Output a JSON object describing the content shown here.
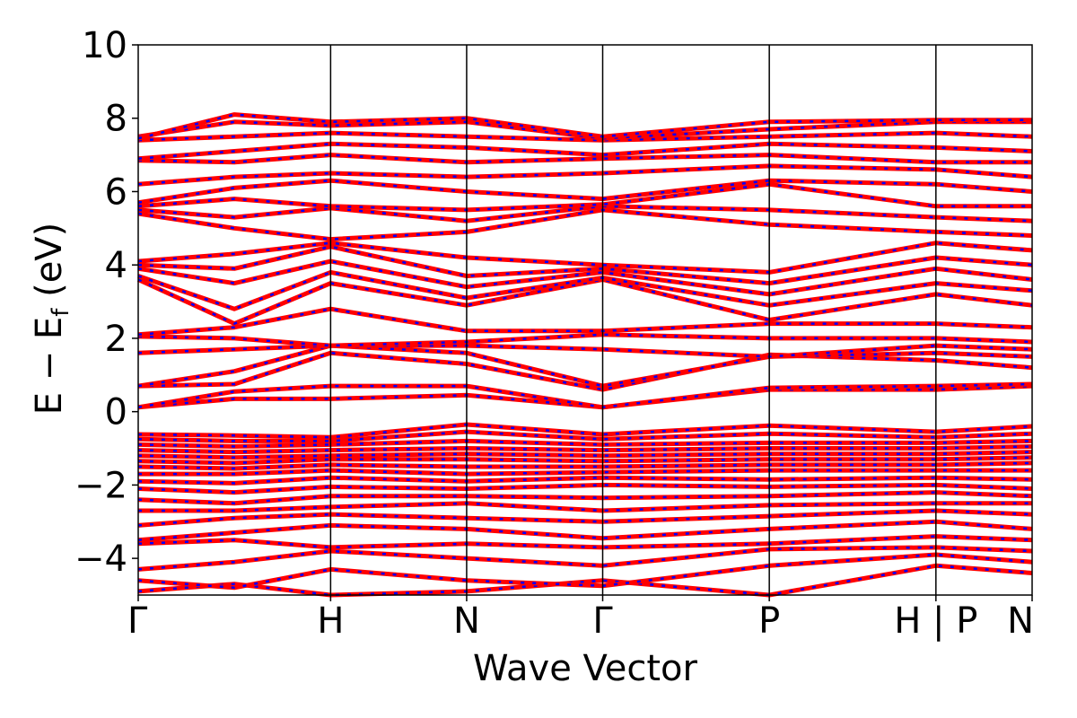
{
  "chart_data": {
    "type": "line",
    "title": "",
    "xlabel": "Wave Vector",
    "ylabel_main": "E − E",
    "ylabel_sub": "f",
    "ylabel_unit": " (eV)",
    "ylim": [
      -5,
      10
    ],
    "yticks": [
      10,
      8,
      6,
      4,
      2,
      0,
      -2,
      -4
    ],
    "ytick_labels": [
      "10",
      "8",
      "6",
      "4",
      "2",
      "0",
      "−2",
      "−4"
    ],
    "kpath": [
      {
        "label": "Γ",
        "x": 0.0
      },
      {
        "label": "H",
        "x": 1.0
      },
      {
        "label": "N",
        "x": 1.707
      },
      {
        "label": "Γ",
        "x": 2.414
      },
      {
        "label": "P",
        "x": 3.28
      },
      {
        "label": "H | P",
        "x": 4.146
      },
      {
        "label": "N",
        "x": 4.646
      }
    ],
    "grid": false,
    "legend": "none",
    "series_colors": {
      "spin_up": "#ff0000",
      "spin_down": "#0000ff"
    },
    "bands": [
      [
        [
          0,
          -4.9
        ],
        [
          0.5,
          -4.7
        ],
        [
          1.0,
          -5.0
        ],
        [
          1.707,
          -4.9
        ],
        [
          2.414,
          -4.6
        ],
        [
          3.28,
          -5.0
        ],
        [
          4.146,
          -4.2
        ],
        [
          4.646,
          -4.4
        ]
      ],
      [
        [
          0,
          -4.6
        ],
        [
          0.5,
          -4.8
        ],
        [
          1.0,
          -4.3
        ],
        [
          1.707,
          -4.6
        ],
        [
          2.414,
          -4.75
        ],
        [
          3.28,
          -4.2
        ],
        [
          4.146,
          -3.9
        ],
        [
          4.646,
          -4.1
        ]
      ],
      [
        [
          0,
          -4.3
        ],
        [
          0.5,
          -4.1
        ],
        [
          1.0,
          -3.8
        ],
        [
          1.707,
          -4.0
        ],
        [
          2.414,
          -4.2
        ],
        [
          3.28,
          -3.75
        ],
        [
          4.146,
          -3.7
        ],
        [
          4.646,
          -3.8
        ]
      ],
      [
        [
          0,
          -3.6
        ],
        [
          0.5,
          -3.5
        ],
        [
          1.0,
          -3.7
        ],
        [
          1.707,
          -3.6
        ],
        [
          2.414,
          -3.7
        ],
        [
          3.28,
          -3.6
        ],
        [
          4.146,
          -3.4
        ],
        [
          4.646,
          -3.5
        ]
      ],
      [
        [
          0,
          -3.5
        ],
        [
          0.5,
          -3.3
        ],
        [
          1.0,
          -3.1
        ],
        [
          1.707,
          -3.2
        ],
        [
          2.414,
          -3.45
        ],
        [
          3.28,
          -3.2
        ],
        [
          4.146,
          -3.0
        ],
        [
          4.646,
          -3.2
        ]
      ],
      [
        [
          0,
          -3.1
        ],
        [
          0.5,
          -2.9
        ],
        [
          1.0,
          -2.8
        ],
        [
          1.707,
          -2.9
        ],
        [
          2.414,
          -3.0
        ],
        [
          3.28,
          -2.85
        ],
        [
          4.146,
          -2.7
        ],
        [
          4.646,
          -2.8
        ]
      ],
      [
        [
          0,
          -2.7
        ],
        [
          0.5,
          -2.7
        ],
        [
          1.0,
          -2.6
        ],
        [
          1.707,
          -2.5
        ],
        [
          2.414,
          -2.7
        ],
        [
          3.28,
          -2.55
        ],
        [
          4.146,
          -2.5
        ],
        [
          4.646,
          -2.5
        ]
      ],
      [
        [
          0,
          -2.4
        ],
        [
          0.5,
          -2.5
        ],
        [
          1.0,
          -2.3
        ],
        [
          1.707,
          -2.3
        ],
        [
          2.414,
          -2.35
        ],
        [
          3.28,
          -2.3
        ],
        [
          4.146,
          -2.2
        ],
        [
          4.646,
          -2.3
        ]
      ],
      [
        [
          0,
          -2.1
        ],
        [
          0.5,
          -2.2
        ],
        [
          1.0,
          -2.05
        ],
        [
          1.707,
          -2.1
        ],
        [
          2.414,
          -2.0
        ],
        [
          3.28,
          -2.05
        ],
        [
          4.146,
          -2.0
        ],
        [
          4.646,
          -2.1
        ]
      ],
      [
        [
          0,
          -1.9
        ],
        [
          0.5,
          -1.95
        ],
        [
          1.0,
          -1.8
        ],
        [
          1.707,
          -1.9
        ],
        [
          2.414,
          -1.8
        ],
        [
          3.28,
          -1.85
        ],
        [
          4.146,
          -1.8
        ],
        [
          4.646,
          -1.85
        ]
      ],
      [
        [
          0,
          -1.7
        ],
        [
          0.5,
          -1.7
        ],
        [
          1.0,
          -1.6
        ],
        [
          1.707,
          -1.7
        ],
        [
          2.414,
          -1.65
        ],
        [
          3.28,
          -1.6
        ],
        [
          4.146,
          -1.6
        ],
        [
          4.646,
          -1.6
        ]
      ],
      [
        [
          0,
          -1.5
        ],
        [
          0.5,
          -1.55
        ],
        [
          1.0,
          -1.45
        ],
        [
          1.707,
          -1.5
        ],
        [
          2.414,
          -1.5
        ],
        [
          3.28,
          -1.45
        ],
        [
          4.146,
          -1.45
        ],
        [
          4.646,
          -1.4
        ]
      ],
      [
        [
          0,
          -1.35
        ],
        [
          0.5,
          -1.4
        ],
        [
          1.0,
          -1.3
        ],
        [
          1.707,
          -1.3
        ],
        [
          2.414,
          -1.35
        ],
        [
          3.28,
          -1.3
        ],
        [
          4.146,
          -1.3
        ],
        [
          4.646,
          -1.25
        ]
      ],
      [
        [
          0,
          -1.2
        ],
        [
          0.5,
          -1.25
        ],
        [
          1.0,
          -1.2
        ],
        [
          1.707,
          -1.15
        ],
        [
          2.414,
          -1.2
        ],
        [
          3.28,
          -1.15
        ],
        [
          4.146,
          -1.15
        ],
        [
          4.646,
          -1.1
        ]
      ],
      [
        [
          0,
          -1.05
        ],
        [
          0.5,
          -1.1
        ],
        [
          1.0,
          -1.05
        ],
        [
          1.707,
          -1.0
        ],
        [
          2.414,
          -1.05
        ],
        [
          3.28,
          -1.0
        ],
        [
          4.146,
          -1.0
        ],
        [
          4.646,
          -0.95
        ]
      ],
      [
        [
          0,
          -0.9
        ],
        [
          0.5,
          -0.95
        ],
        [
          1.0,
          -0.9
        ],
        [
          1.707,
          -0.8
        ],
        [
          2.414,
          -0.9
        ],
        [
          3.28,
          -0.85
        ],
        [
          4.146,
          -0.85
        ],
        [
          4.646,
          -0.8
        ]
      ],
      [
        [
          0,
          -0.75
        ],
        [
          0.5,
          -0.8
        ],
        [
          1.0,
          -0.8
        ],
        [
          1.707,
          -0.55
        ],
        [
          2.414,
          -0.75
        ],
        [
          3.28,
          -0.6
        ],
        [
          4.146,
          -0.7
        ],
        [
          4.646,
          -0.6
        ]
      ],
      [
        [
          0,
          -0.62
        ],
        [
          0.5,
          -0.65
        ],
        [
          1.0,
          -0.7
        ],
        [
          1.707,
          -0.35
        ],
        [
          2.414,
          -0.62
        ],
        [
          3.28,
          -0.38
        ],
        [
          4.146,
          -0.55
        ],
        [
          4.646,
          -0.4
        ]
      ],
      [
        [
          0,
          0.12
        ],
        [
          0.5,
          0.35
        ],
        [
          1.0,
          0.35
        ],
        [
          1.707,
          0.45
        ],
        [
          2.414,
          0.12
        ],
        [
          3.28,
          0.6
        ],
        [
          4.146,
          0.6
        ],
        [
          4.646,
          0.7
        ]
      ],
      [
        [
          0,
          0.12
        ],
        [
          0.5,
          0.55
        ],
        [
          1.0,
          0.7
        ],
        [
          1.707,
          0.7
        ],
        [
          2.414,
          0.12
        ],
        [
          3.28,
          0.65
        ],
        [
          4.146,
          0.7
        ],
        [
          4.646,
          0.75
        ]
      ],
      [
        [
          0,
          0.7
        ],
        [
          0.5,
          0.75
        ],
        [
          1.0,
          1.6
        ],
        [
          1.707,
          1.3
        ],
        [
          2.414,
          0.6
        ],
        [
          3.28,
          1.55
        ],
        [
          4.146,
          1.4
        ],
        [
          4.646,
          1.2
        ]
      ],
      [
        [
          0,
          0.7
        ],
        [
          0.5,
          1.1
        ],
        [
          1.0,
          1.8
        ],
        [
          1.707,
          1.6
        ],
        [
          2.414,
          0.7
        ],
        [
          3.28,
          1.5
        ],
        [
          4.146,
          1.6
        ],
        [
          4.646,
          1.5
        ]
      ],
      [
        [
          0,
          1.6
        ],
        [
          0.5,
          1.7
        ],
        [
          1.0,
          1.8
        ],
        [
          1.707,
          1.8
        ],
        [
          2.414,
          1.7
        ],
        [
          3.28,
          1.5
        ],
        [
          4.146,
          1.8
        ],
        [
          4.646,
          1.7
        ]
      ],
      [
        [
          0,
          2.05
        ],
        [
          0.5,
          2.0
        ],
        [
          1.0,
          1.8
        ],
        [
          1.707,
          1.9
        ],
        [
          2.414,
          2.1
        ],
        [
          3.28,
          2.0
        ],
        [
          4.146,
          2.0
        ],
        [
          4.646,
          1.9
        ]
      ],
      [
        [
          0,
          2.1
        ],
        [
          0.5,
          2.3
        ],
        [
          1.0,
          2.8
        ],
        [
          1.707,
          2.2
        ],
        [
          2.414,
          2.2
        ],
        [
          3.28,
          2.4
        ],
        [
          4.146,
          2.4
        ],
        [
          4.646,
          2.3
        ]
      ],
      [
        [
          0,
          3.6
        ],
        [
          0.5,
          2.4
        ],
        [
          1.0,
          3.5
        ],
        [
          1.707,
          2.9
        ],
        [
          2.414,
          3.6
        ],
        [
          3.28,
          2.5
        ],
        [
          4.146,
          3.2
        ],
        [
          4.646,
          2.9
        ]
      ],
      [
        [
          0,
          3.7
        ],
        [
          0.5,
          2.8
        ],
        [
          1.0,
          3.8
        ],
        [
          1.707,
          3.1
        ],
        [
          2.414,
          3.65
        ],
        [
          3.28,
          2.9
        ],
        [
          4.146,
          3.5
        ],
        [
          4.646,
          3.3
        ]
      ],
      [
        [
          0,
          3.9
        ],
        [
          0.5,
          3.5
        ],
        [
          1.0,
          4.1
        ],
        [
          1.707,
          3.4
        ],
        [
          2.414,
          3.8
        ],
        [
          3.28,
          3.2
        ],
        [
          4.146,
          3.9
        ],
        [
          4.646,
          3.6
        ]
      ],
      [
        [
          0,
          4.0
        ],
        [
          0.5,
          3.9
        ],
        [
          1.0,
          4.5
        ],
        [
          1.707,
          3.7
        ],
        [
          2.414,
          3.9
        ],
        [
          3.28,
          3.5
        ],
        [
          4.146,
          4.2
        ],
        [
          4.646,
          4.0
        ]
      ],
      [
        [
          0,
          4.1
        ],
        [
          0.5,
          4.3
        ],
        [
          1.0,
          4.6
        ],
        [
          1.707,
          4.2
        ],
        [
          2.414,
          4.0
        ],
        [
          3.28,
          3.8
        ],
        [
          4.146,
          4.6
        ],
        [
          4.646,
          4.4
        ]
      ],
      [
        [
          0,
          5.4
        ],
        [
          0.5,
          5.0
        ],
        [
          1.0,
          4.7
        ],
        [
          1.707,
          4.9
        ],
        [
          2.414,
          5.5
        ],
        [
          3.28,
          5.1
        ],
        [
          4.146,
          4.9
        ],
        [
          4.646,
          4.8
        ]
      ],
      [
        [
          0,
          5.5
        ],
        [
          0.5,
          5.3
        ],
        [
          1.0,
          5.55
        ],
        [
          1.707,
          5.2
        ],
        [
          2.414,
          5.6
        ],
        [
          3.28,
          5.5
        ],
        [
          4.146,
          5.3
        ],
        [
          4.646,
          5.2
        ]
      ],
      [
        [
          0,
          5.6
        ],
        [
          0.5,
          5.8
        ],
        [
          1.0,
          5.6
        ],
        [
          1.707,
          5.5
        ],
        [
          2.414,
          5.65
        ],
        [
          3.28,
          6.2
        ],
        [
          4.146,
          5.6
        ],
        [
          4.646,
          5.6
        ]
      ],
      [
        [
          0,
          5.7
        ],
        [
          0.5,
          6.1
        ],
        [
          1.0,
          6.3
        ],
        [
          1.707,
          6.0
        ],
        [
          2.414,
          5.8
        ],
        [
          3.28,
          6.3
        ],
        [
          4.146,
          6.2
        ],
        [
          4.646,
          6.0
        ]
      ],
      [
        [
          0,
          6.2
        ],
        [
          0.5,
          6.4
        ],
        [
          1.0,
          6.5
        ],
        [
          1.707,
          6.4
        ],
        [
          2.414,
          6.5
        ],
        [
          3.28,
          6.7
        ],
        [
          4.146,
          6.6
        ],
        [
          4.646,
          6.4
        ]
      ],
      [
        [
          0,
          6.85
        ],
        [
          0.5,
          6.8
        ],
        [
          1.0,
          7.0
        ],
        [
          1.707,
          6.8
        ],
        [
          2.414,
          6.9
        ],
        [
          3.28,
          7.0
        ],
        [
          4.146,
          6.8
        ],
        [
          4.646,
          6.8
        ]
      ],
      [
        [
          0,
          6.9
        ],
        [
          0.5,
          7.1
        ],
        [
          1.0,
          7.3
        ],
        [
          1.707,
          7.2
        ],
        [
          2.414,
          7.0
        ],
        [
          3.28,
          7.3
        ],
        [
          4.146,
          7.2
        ],
        [
          4.646,
          7.1
        ]
      ],
      [
        [
          0,
          7.4
        ],
        [
          0.5,
          7.5
        ],
        [
          1.0,
          7.6
        ],
        [
          1.707,
          7.5
        ],
        [
          2.414,
          7.4
        ],
        [
          3.28,
          7.5
        ],
        [
          4.146,
          7.6
        ],
        [
          4.646,
          7.5
        ]
      ],
      [
        [
          0,
          7.5
        ],
        [
          0.5,
          7.9
        ],
        [
          1.0,
          7.8
        ],
        [
          1.707,
          7.9
        ],
        [
          2.414,
          7.45
        ],
        [
          3.28,
          7.7
        ],
        [
          4.146,
          7.9
        ],
        [
          4.646,
          7.9
        ]
      ],
      [
        [
          0,
          7.45
        ],
        [
          0.5,
          8.1
        ],
        [
          1.0,
          7.9
        ],
        [
          1.707,
          8.0
        ],
        [
          2.414,
          7.5
        ],
        [
          3.28,
          7.9
        ],
        [
          4.146,
          7.95
        ],
        [
          4.646,
          7.95
        ]
      ]
    ]
  }
}
